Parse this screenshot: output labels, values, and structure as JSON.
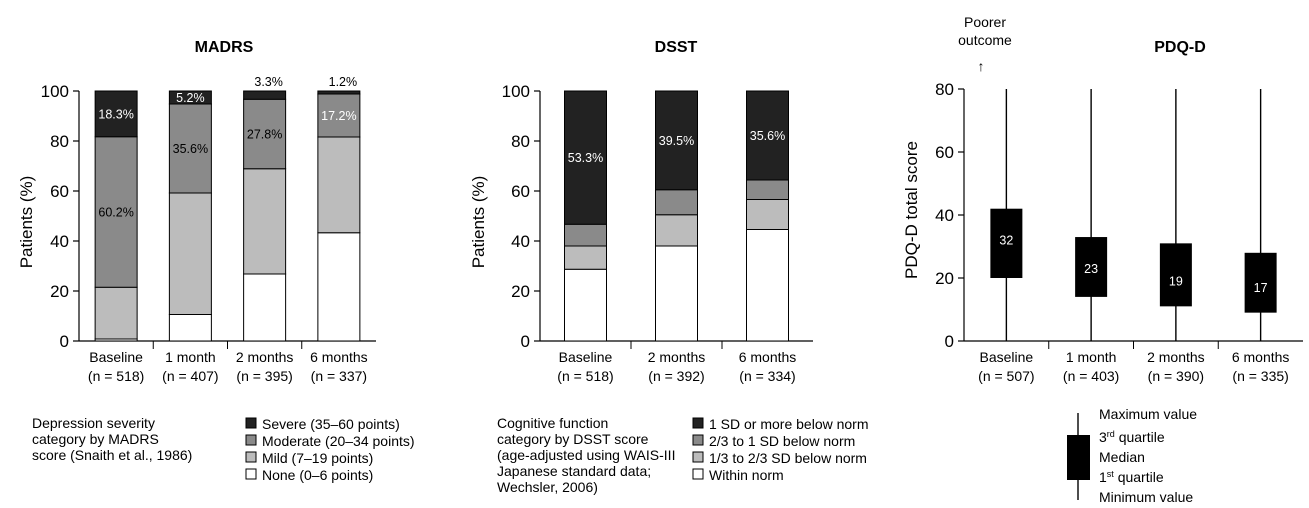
{
  "chart_data": [
    {
      "type": "bar",
      "stacked": true,
      "title": "MADRS",
      "ylabel": "Patients (%)",
      "ylim": [
        0,
        100
      ],
      "yticks": [
        0,
        20,
        40,
        60,
        80,
        100
      ],
      "categories": [
        "Baseline",
        "1 month",
        "2 months",
        "6 months"
      ],
      "category_n": [
        "(n = 518)",
        "(n = 407)",
        "(n = 395)",
        "(n = 337)"
      ],
      "series": [
        {
          "name": "None (0–6 points)",
          "color": "#ffffff",
          "values": [
            0.8,
            10.6,
            26.8,
            43.3
          ]
        },
        {
          "name": "Mild (7–19 points)",
          "color": "#bcbcbc",
          "values": [
            20.7,
            48.6,
            42.1,
            38.3
          ]
        },
        {
          "name": "Moderate (20–34 points)",
          "color": "#8a8a8a",
          "values": [
            60.2,
            35.6,
            27.8,
            17.2
          ]
        },
        {
          "name": "Severe (35–60 points)",
          "color": "#222222",
          "values": [
            18.3,
            5.2,
            3.3,
            1.2
          ]
        }
      ],
      "segment_labels": [
        {
          "category": 0,
          "series": 3,
          "text": "18.3%",
          "color": "#ffffff"
        },
        {
          "category": 0,
          "series": 2,
          "text": "60.2%",
          "color": "#000000"
        },
        {
          "category": 1,
          "series": 3,
          "text": "5.2%",
          "color": "#ffffff"
        },
        {
          "category": 1,
          "series": 2,
          "text": "35.6%",
          "color": "#000000"
        },
        {
          "category": 2,
          "series": 3,
          "text": "3.3%",
          "color": "#000000",
          "above": true
        },
        {
          "category": 2,
          "series": 2,
          "text": "27.8%",
          "color": "#000000"
        },
        {
          "category": 3,
          "series": 3,
          "text": "1.2%",
          "color": "#000000",
          "above": true
        },
        {
          "category": 3,
          "series": 2,
          "text": "17.2%",
          "color": "#ffffff"
        }
      ],
      "legend_caption": [
        "Depression severity",
        "category by MADRS",
        "score (Snaith et al., 1986)"
      ]
    },
    {
      "type": "bar",
      "stacked": true,
      "title": "DSST",
      "ylabel": "Patients (%)",
      "ylim": [
        0,
        100
      ],
      "yticks": [
        0,
        20,
        40,
        60,
        80,
        100
      ],
      "categories": [
        "Baseline",
        "2 months",
        "6 months"
      ],
      "category_n": [
        "(n = 518)",
        "(n = 392)",
        "(n = 334)"
      ],
      "series": [
        {
          "name": "Within norm",
          "color": "#ffffff",
          "values": [
            28.7,
            38.0,
            44.6
          ]
        },
        {
          "name": "1/3 to 2/3 SD below norm",
          "color": "#bcbcbc",
          "values": [
            9.3,
            12.5,
            12.0
          ]
        },
        {
          "name": "2/3 to 1 SD below norm",
          "color": "#8a8a8a",
          "values": [
            8.7,
            10.0,
            7.8
          ]
        },
        {
          "name": "1 SD or more below norm",
          "color": "#222222",
          "values": [
            53.3,
            39.5,
            35.6
          ]
        }
      ],
      "segment_labels": [
        {
          "category": 0,
          "series": 3,
          "text": "53.3%",
          "color": "#ffffff"
        },
        {
          "category": 1,
          "series": 3,
          "text": "39.5%",
          "color": "#ffffff"
        },
        {
          "category": 2,
          "series": 3,
          "text": "35.6%",
          "color": "#ffffff"
        }
      ],
      "legend_caption": [
        "Cognitive function",
        "category by DSST score",
        "(age-adjusted using WAIS-III",
        "Japanese standard data;",
        "Wechsler, 2006)"
      ]
    },
    {
      "type": "box",
      "title": "PDQ-D",
      "ylabel": "PDQ-D total score",
      "ylim": [
        0,
        80
      ],
      "yticks": [
        0,
        20,
        40,
        60,
        80
      ],
      "annotation": [
        "Poorer",
        "outcome",
        "↑"
      ],
      "categories": [
        "Baseline",
        "1 month",
        "2 months",
        "6 months"
      ],
      "category_n": [
        "(n = 507)",
        "(n = 403)",
        "(n = 390)",
        "(n = 335)"
      ],
      "boxes": [
        {
          "min": 0,
          "q1": 20,
          "median": 32,
          "q3": 42,
          "max": 80,
          "label": "32"
        },
        {
          "min": 0,
          "q1": 14,
          "median": 23,
          "q3": 33,
          "max": 80,
          "label": "23"
        },
        {
          "min": 0,
          "q1": 11,
          "median": 19,
          "q3": 31,
          "max": 80,
          "label": "19"
        },
        {
          "min": 0,
          "q1": 9,
          "median": 17,
          "q3": 28,
          "max": 80,
          "label": "17"
        }
      ],
      "legend": {
        "max": "Maximum value",
        "q3": "3",
        "q3_sup": "rd",
        "q3_rest": " quartile",
        "median": "Median",
        "q1": "1",
        "q1_sup": "st",
        "q1_rest": " quartile",
        "min": "Minimum value"
      }
    }
  ]
}
